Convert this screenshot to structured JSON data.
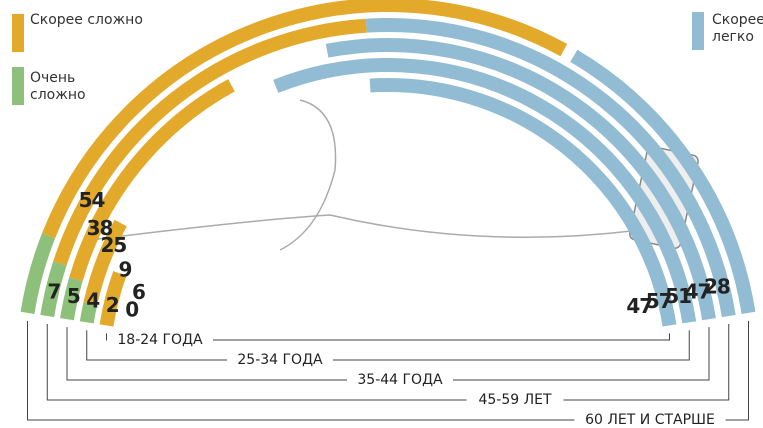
{
  "chart_data": {
    "type": "radial-bar",
    "categories": [
      "18-24 ГОДА",
      "25-34 ГОДА",
      "35-44 ГОДА",
      "45-59 ЛЕТ",
      "60 ЛЕТ И СТАРШЕ"
    ],
    "series": [
      {
        "name": "Очень сложно",
        "color": "#8dc07a",
        "values": [
          0,
          2,
          4,
          5,
          7
        ]
      },
      {
        "name": "Скорее сложно",
        "color": "#e3a92a",
        "values": [
          6,
          9,
          25,
          38,
          54
        ]
      },
      {
        "name": "Скорее легко",
        "color": "#92bcd3",
        "values": [
          47,
          57,
          51,
          47,
          28
        ]
      }
    ]
  }
}
